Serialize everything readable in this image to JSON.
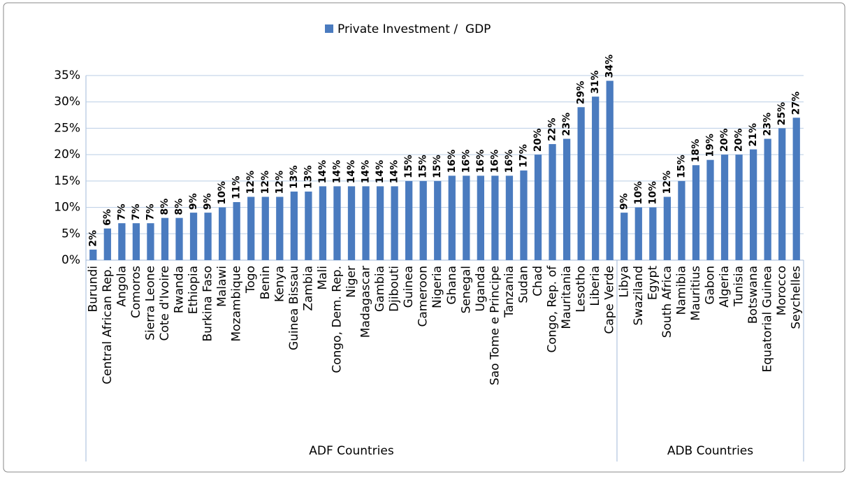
{
  "chart_data": {
    "type": "bar",
    "legend": "Private Investment /  GDP",
    "color": "#4a7bbf",
    "groups": [
      {
        "name": "ADF Countries",
        "categories": [
          "Burundi",
          "Central African Rep.",
          "Angola",
          "Comoros",
          "Sierra Leone",
          "Cote d'Ivoire",
          "Rwanda",
          "Ethiopia",
          "Burkina Faso",
          "Malawi",
          "Mozambique",
          "Togo",
          "Benin",
          "Kenya",
          "Guinea Bissau",
          "Zambia",
          "Mali",
          "Congo, Dem. Rep.",
          "Niger",
          "Madagascar",
          "Gambia",
          "Djibouti",
          "Guinea",
          "Cameroon",
          "Nigeria",
          "Ghana",
          "Senegal",
          "Uganda",
          "Sao Tome e Principe",
          "Tanzania",
          "Sudan",
          "Chad",
          "Congo, Rep. of",
          "Mauritania",
          "Lesotho",
          "Liberia",
          "Cape Verde"
        ]
      },
      {
        "name": "ADB Countries",
        "categories": [
          "Libya",
          "Swaziland",
          "Egypt",
          "South Africa",
          "Namibia",
          "Mauritius",
          "Gabon",
          "Algeria",
          "Tunisia",
          "Botswana",
          "Equatorial Guinea",
          "Morocco",
          "Seychelles"
        ]
      }
    ],
    "values": [
      2,
      6,
      7,
      7,
      7,
      8,
      8,
      9,
      9,
      10,
      11,
      12,
      12,
      12,
      13,
      13,
      14,
      14,
      14,
      14,
      14,
      14,
      15,
      15,
      15,
      16,
      16,
      16,
      16,
      16,
      17,
      20,
      22,
      23,
      29,
      31,
      34,
      9,
      10,
      10,
      12,
      15,
      18,
      19,
      20,
      20,
      21,
      23,
      25,
      27
    ],
    "value_labels": [
      "2%",
      "6%",
      "7%",
      "7%",
      "7%",
      "8%",
      "8%",
      "9%",
      "9%",
      "10%",
      "11%",
      "12%",
      "12%",
      "12%",
      "13%",
      "13%",
      "14%",
      "14%",
      "14%",
      "14%",
      "14%",
      "14%",
      "15%",
      "15%",
      "15%",
      "16%",
      "16%",
      "16%",
      "16%",
      "16%",
      "17%",
      "20%",
      "22%",
      "23%",
      "29%",
      "31%",
      "34%",
      "9%",
      "10%",
      "10%",
      "12%",
      "15%",
      "18%",
      "19%",
      "20%",
      "20%",
      "21%",
      "23%",
      "25%",
      "27%"
    ],
    "ylim": [
      0,
      35
    ],
    "yticks": [
      {
        "value": 0,
        "label": "0%"
      },
      {
        "value": 5,
        "label": "5%"
      },
      {
        "value": 10,
        "label": "10%"
      },
      {
        "value": 15,
        "label": "15%"
      },
      {
        "value": 20,
        "label": "20%"
      },
      {
        "value": 25,
        "label": "25%"
      },
      {
        "value": 30,
        "label": "30%"
      },
      {
        "value": 35,
        "label": "35%"
      }
    ],
    "grid": true
  }
}
